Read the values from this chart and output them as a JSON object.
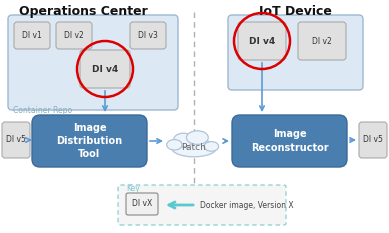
{
  "bg_color": "#ffffff",
  "title_left": "Operations Center",
  "title_right": "IoT Device",
  "container_repo_color": "#dce9f5",
  "container_repo_border": "#a0b8d0",
  "iot_container_color": "#dce9f5",
  "iot_container_border": "#a0b8d0",
  "di_box_face": "#e0e0e0",
  "di_box_edge": "#aaaaaa",
  "tool_box_color": "#4a7eaf",
  "tool_box_border": "#3a6a9a",
  "arrow_color": "#5b9bd5",
  "red_circle_color": "#dd0000",
  "dashed_line_color": "#b0b0b0",
  "cloud_face": "#eef4fc",
  "cloud_edge": "#b0c4d8",
  "key_border": "#7ec8d0",
  "key_label_color": "#7ec8d0",
  "key_arrow_color": "#5bc8d0",
  "container_repo_label": "Container Repo",
  "key_label": "Key",
  "key_desc": "Docker image, Version X",
  "di_labels_repo": [
    "DI v1",
    "DI v2",
    "DI v3",
    "DI v4"
  ],
  "iot_di_labels": [
    "DI v4",
    "DI v2"
  ],
  "left_box_label": "DI v5",
  "right_box_label": "DI v5",
  "tool_label": "Image\nDistribution\nTool",
  "reconstructor_label": "Image\nReconstructor",
  "patch_label": "Patch",
  "key_di_label": "DI vX",
  "figw": 3.89,
  "figh": 2.33,
  "dpi": 100
}
